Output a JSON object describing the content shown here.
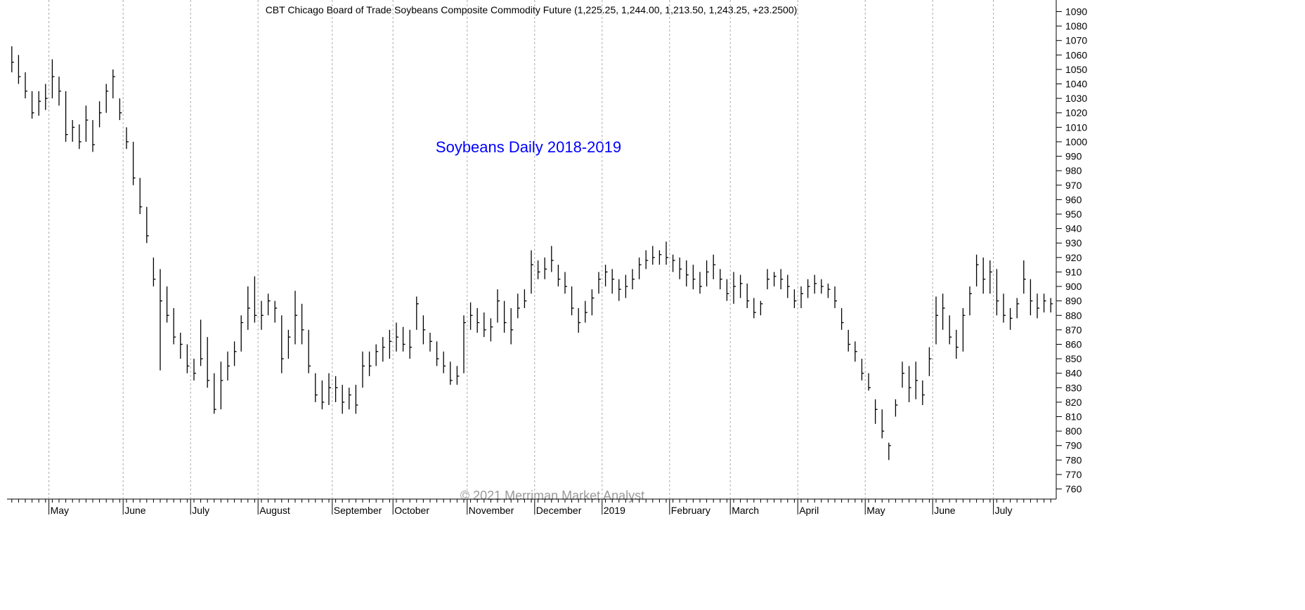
{
  "chart_data": {
    "type": "ohlc",
    "title": "CBT Chicago Board of Trade Soybeans Composite Commodity Future (1,225.25, 1,244.00, 1,213.50, 1,243.25, +23.2500)",
    "annotation": "Soybeans Daily 2018-2019",
    "watermark": "© 2021 Merriman Market Analyst",
    "color": "#000000",
    "annotation_color": "#0000ff",
    "grid": true,
    "ylim": [
      753,
      1098
    ],
    "yticks": [
      760,
      770,
      780,
      790,
      800,
      810,
      820,
      830,
      840,
      850,
      860,
      870,
      880,
      890,
      900,
      910,
      920,
      930,
      940,
      950,
      960,
      970,
      980,
      990,
      1000,
      1010,
      1020,
      1030,
      1040,
      1050,
      1060,
      1070,
      1080,
      1090
    ],
    "categories": [
      null,
      null,
      null,
      null,
      null,
      null,
      "May",
      null,
      null,
      null,
      null,
      null,
      null,
      null,
      null,
      null,
      null,
      "June",
      null,
      null,
      null,
      null,
      null,
      null,
      null,
      null,
      null,
      "July",
      null,
      null,
      null,
      null,
      null,
      null,
      null,
      null,
      null,
      "August",
      null,
      null,
      null,
      null,
      null,
      null,
      null,
      null,
      null,
      null,
      "September",
      null,
      null,
      null,
      null,
      null,
      null,
      null,
      null,
      "October",
      null,
      null,
      null,
      null,
      null,
      null,
      null,
      null,
      null,
      null,
      "November",
      null,
      null,
      null,
      null,
      null,
      null,
      null,
      null,
      null,
      "December",
      null,
      null,
      null,
      null,
      null,
      null,
      null,
      null,
      null,
      "2019",
      null,
      null,
      null,
      null,
      null,
      null,
      null,
      null,
      null,
      "February",
      null,
      null,
      null,
      null,
      null,
      null,
      null,
      null,
      "March",
      null,
      null,
      null,
      null,
      null,
      null,
      null,
      null,
      null,
      "April",
      null,
      null,
      null,
      null,
      null,
      null,
      null,
      null,
      null,
      "May",
      null,
      null,
      null,
      null,
      null,
      null,
      null,
      null,
      null,
      "June",
      null,
      null,
      null,
      null,
      null,
      null,
      null,
      null,
      "July",
      null,
      null,
      null,
      null,
      null,
      null,
      null,
      null
    ],
    "high": [
      1066,
      1060,
      1048,
      1035,
      1035,
      1040,
      1057,
      1045,
      1035,
      1015,
      1012,
      1025,
      1015,
      1028,
      1040,
      1050,
      1030,
      1010,
      1000,
      975,
      955,
      920,
      912,
      900,
      885,
      868,
      860,
      850,
      877,
      865,
      840,
      848,
      855,
      862,
      880,
      900,
      907,
      890,
      895,
      890,
      880,
      870,
      897,
      888,
      870,
      840,
      835,
      840,
      838,
      832,
      830,
      832,
      855,
      855,
      860,
      865,
      870,
      875,
      872,
      870,
      893,
      880,
      868,
      862,
      855,
      848,
      845,
      880,
      889,
      885,
      882,
      878,
      898,
      890,
      885,
      895,
      898,
      925,
      918,
      920,
      928,
      915,
      910,
      900,
      885,
      890,
      898,
      910,
      915,
      912,
      905,
      908,
      912,
      920,
      925,
      928,
      925,
      931,
      922,
      920,
      918,
      915,
      910,
      918,
      922,
      912,
      905,
      910,
      908,
      902,
      892,
      890,
      912,
      910,
      912,
      908,
      898,
      900,
      905,
      908,
      905,
      902,
      900,
      885,
      870,
      862,
      850,
      840,
      822,
      815,
      792,
      822,
      848,
      845,
      848,
      835,
      858,
      893,
      895,
      880,
      870,
      885,
      900,
      922,
      920,
      918,
      912,
      895,
      885,
      892,
      918,
      905,
      895,
      895,
      892
    ],
    "low": [
      1048,
      1040,
      1030,
      1016,
      1018,
      1022,
      1030,
      1025,
      1000,
      1000,
      995,
      1000,
      993,
      1010,
      1020,
      1030,
      1015,
      995,
      970,
      950,
      930,
      900,
      842,
      875,
      860,
      850,
      840,
      835,
      845,
      830,
      812,
      815,
      835,
      845,
      855,
      870,
      875,
      870,
      880,
      875,
      840,
      850,
      860,
      860,
      840,
      820,
      815,
      818,
      820,
      812,
      815,
      812,
      830,
      838,
      845,
      848,
      850,
      855,
      855,
      850,
      870,
      860,
      855,
      845,
      840,
      832,
      832,
      840,
      870,
      868,
      865,
      862,
      875,
      868,
      860,
      878,
      885,
      895,
      905,
      905,
      910,
      900,
      895,
      880,
      868,
      875,
      880,
      895,
      900,
      895,
      890,
      892,
      898,
      905,
      912,
      915,
      915,
      915,
      910,
      905,
      900,
      898,
      895,
      900,
      905,
      898,
      890,
      888,
      892,
      885,
      878,
      880,
      898,
      900,
      898,
      892,
      885,
      885,
      892,
      895,
      895,
      892,
      885,
      870,
      855,
      848,
      835,
      828,
      805,
      795,
      780,
      810,
      830,
      820,
      822,
      818,
      838,
      860,
      870,
      860,
      850,
      855,
      880,
      900,
      895,
      895,
      880,
      875,
      870,
      878,
      895,
      880,
      878,
      882,
      882
    ],
    "close": [
      1055,
      1045,
      1035,
      1020,
      1028,
      1030,
      1045,
      1035,
      1005,
      1010,
      1000,
      1015,
      998,
      1020,
      1035,
      1045,
      1020,
      1000,
      975,
      955,
      935,
      905,
      890,
      880,
      865,
      860,
      845,
      840,
      850,
      835,
      815,
      835,
      845,
      855,
      875,
      885,
      880,
      880,
      890,
      885,
      850,
      865,
      880,
      870,
      845,
      825,
      820,
      830,
      830,
      820,
      825,
      818,
      845,
      845,
      855,
      858,
      862,
      865,
      860,
      858,
      888,
      870,
      862,
      850,
      845,
      835,
      838,
      875,
      880,
      875,
      870,
      872,
      890,
      875,
      870,
      885,
      890,
      915,
      910,
      912,
      918,
      905,
      900,
      885,
      875,
      882,
      892,
      905,
      910,
      905,
      898,
      900,
      905,
      915,
      918,
      920,
      922,
      920,
      918,
      912,
      908,
      905,
      900,
      910,
      915,
      905,
      895,
      900,
      902,
      890,
      882,
      888,
      905,
      907,
      905,
      900,
      890,
      895,
      900,
      902,
      900,
      898,
      890,
      875,
      860,
      855,
      840,
      830,
      815,
      800,
      790,
      818,
      840,
      830,
      835,
      825,
      850,
      880,
      885,
      865,
      858,
      880,
      895,
      915,
      905,
      910,
      890,
      880,
      878,
      888,
      905,
      890,
      885,
      890,
      888
    ]
  }
}
